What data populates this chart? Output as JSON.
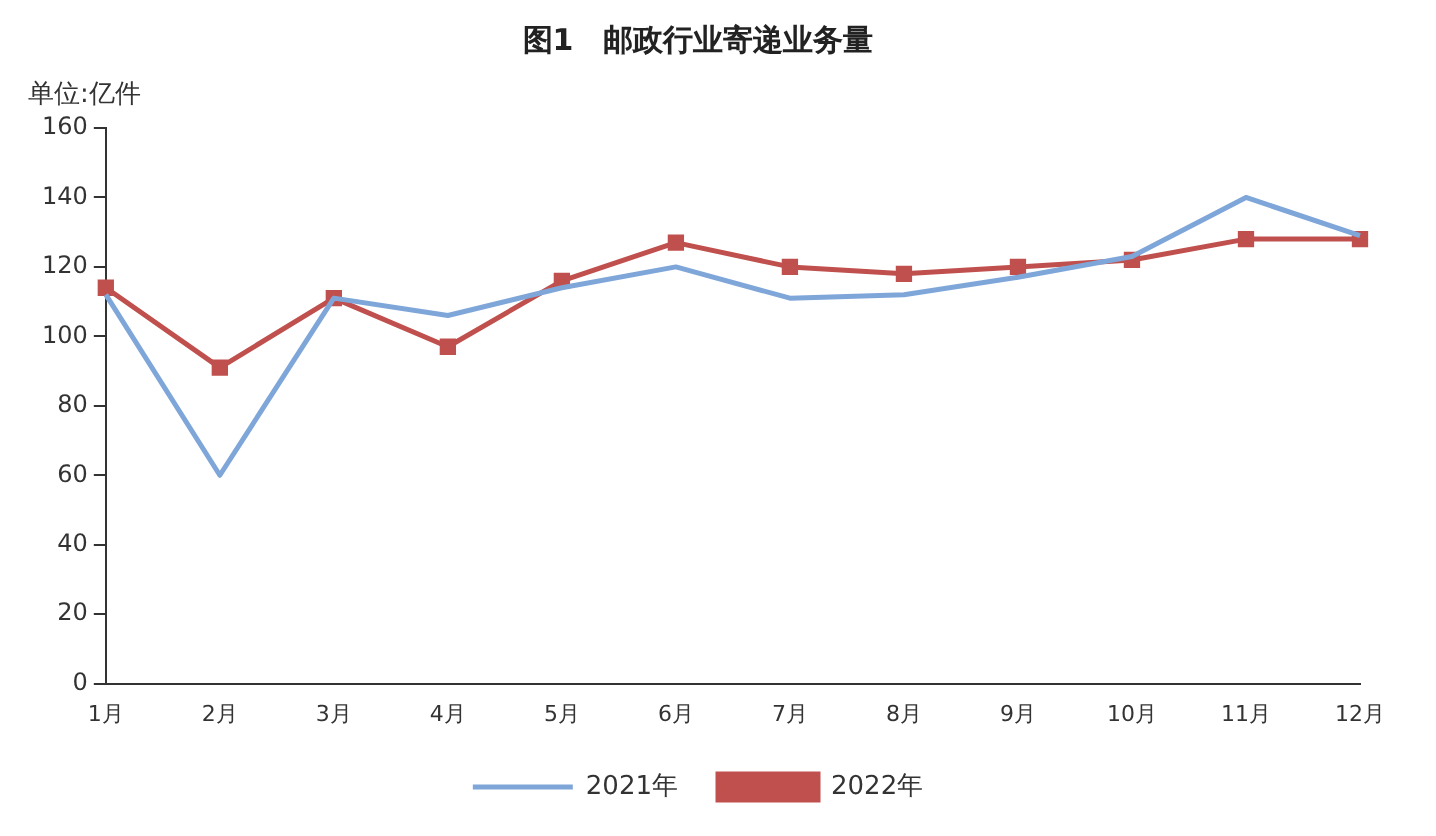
{
  "chart_data": {
    "type": "line",
    "title": "图1　邮政行业寄递业务量",
    "ylabel": "单位:亿件",
    "categories": [
      "1月",
      "2月",
      "3月",
      "4月",
      "5月",
      "6月",
      "7月",
      "8月",
      "9月",
      "10月",
      "11月",
      "12月"
    ],
    "series": [
      {
        "name": "2021年",
        "color": "#7fa6d9",
        "marker": "none",
        "values": [
          112,
          60,
          111,
          106,
          114,
          120,
          111,
          112,
          117,
          123,
          140,
          129
        ]
      },
      {
        "name": "2022年",
        "color": "#c0504d",
        "marker": "square",
        "values": [
          114,
          91,
          111,
          97,
          116,
          127,
          120,
          118,
          120,
          122,
          128,
          128
        ]
      }
    ],
    "ylim": [
      0,
      160
    ],
    "yticks": [
      0,
      20,
      40,
      60,
      80,
      100,
      120,
      140,
      160
    ],
    "grid": false,
    "legend": "bottom",
    "line_style": "solid"
  }
}
